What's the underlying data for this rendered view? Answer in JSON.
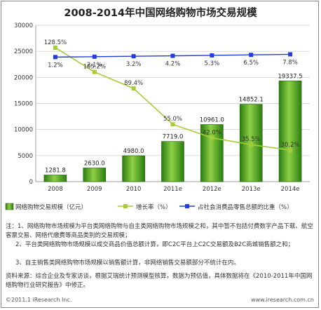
{
  "title": "2008-2014年中国网络购物市场交易规模",
  "chart_data": {
    "type": "bar",
    "categories": [
      "2008",
      "2009",
      "2010",
      "2011e",
      "2012e",
      "2013e",
      "2014e"
    ],
    "ylim": [
      0,
      30000
    ],
    "y_ticks": [
      0,
      5000,
      10000,
      15000,
      20000,
      25000,
      30000
    ],
    "series": [
      {
        "name": "网络购物交易规模（亿元）",
        "type": "bar",
        "values": [
          1281.8,
          2630.0,
          4980.0,
          7719.0,
          10961.0,
          14852.1,
          19337.5
        ],
        "labels": [
          "1281.8",
          "2630.0",
          "4980.0",
          "7719.0",
          "10961.0",
          "14852.1",
          "19337.5"
        ],
        "color": "#2e7d12"
      },
      {
        "name": "增长率（%）",
        "type": "line",
        "values": [
          128.5,
          105.2,
          89.4,
          55.0,
          42.0,
          35.5,
          30.2
        ],
        "labels": [
          "128.5%",
          "105.2%",
          "89.4%",
          "55.0%",
          "42.0%",
          "35.5%",
          "30.2%"
        ],
        "color": "#a5cd39"
      },
      {
        "name": "占社会消费品零售总额的比重（%）",
        "type": "line",
        "values": [
          1.2,
          2.1,
          3.2,
          4.2,
          5.3,
          6.5,
          7.8
        ],
        "labels": [
          "1.2%",
          "2.1%",
          "3.2%",
          "4.2%",
          "5.3%",
          "6.5%",
          "7.8%"
        ],
        "color": "#1f3de0"
      }
    ],
    "legend_position": "bottom"
  },
  "notes": [
    "注：1、网络购物市场规模为平台类网络购物与自主类网络购物市场规模之和，其中暂不包括付费数字产品下载、航空客票交易、网络代缴费等商品类别的交易规模；",
    "2、平台类网络购物市场规模以成交商品价值总额计算，即C2C平台上C2C交易额及B2C商城销售额之和；",
    "3、自主销售类网络购物市场规模以销售额计算，非网络销售交易额部分不统计在内。"
  ],
  "source": "资料来源：综合企业及专家访谈，根据艾瑞统计预测模型核算，数据为预估值，具体数据将在《2010-2011年中国网络购物行业研究报告》中修正。",
  "footer": {
    "left": "©2011.1 iResearch Inc.",
    "right": "www.iresearch.com.cn"
  },
  "colors": {
    "bar_dark": "#1f6b0c",
    "bar_light": "#9ed84e",
    "growth_line": "#a5cd39",
    "share_line": "#1f3de0"
  }
}
